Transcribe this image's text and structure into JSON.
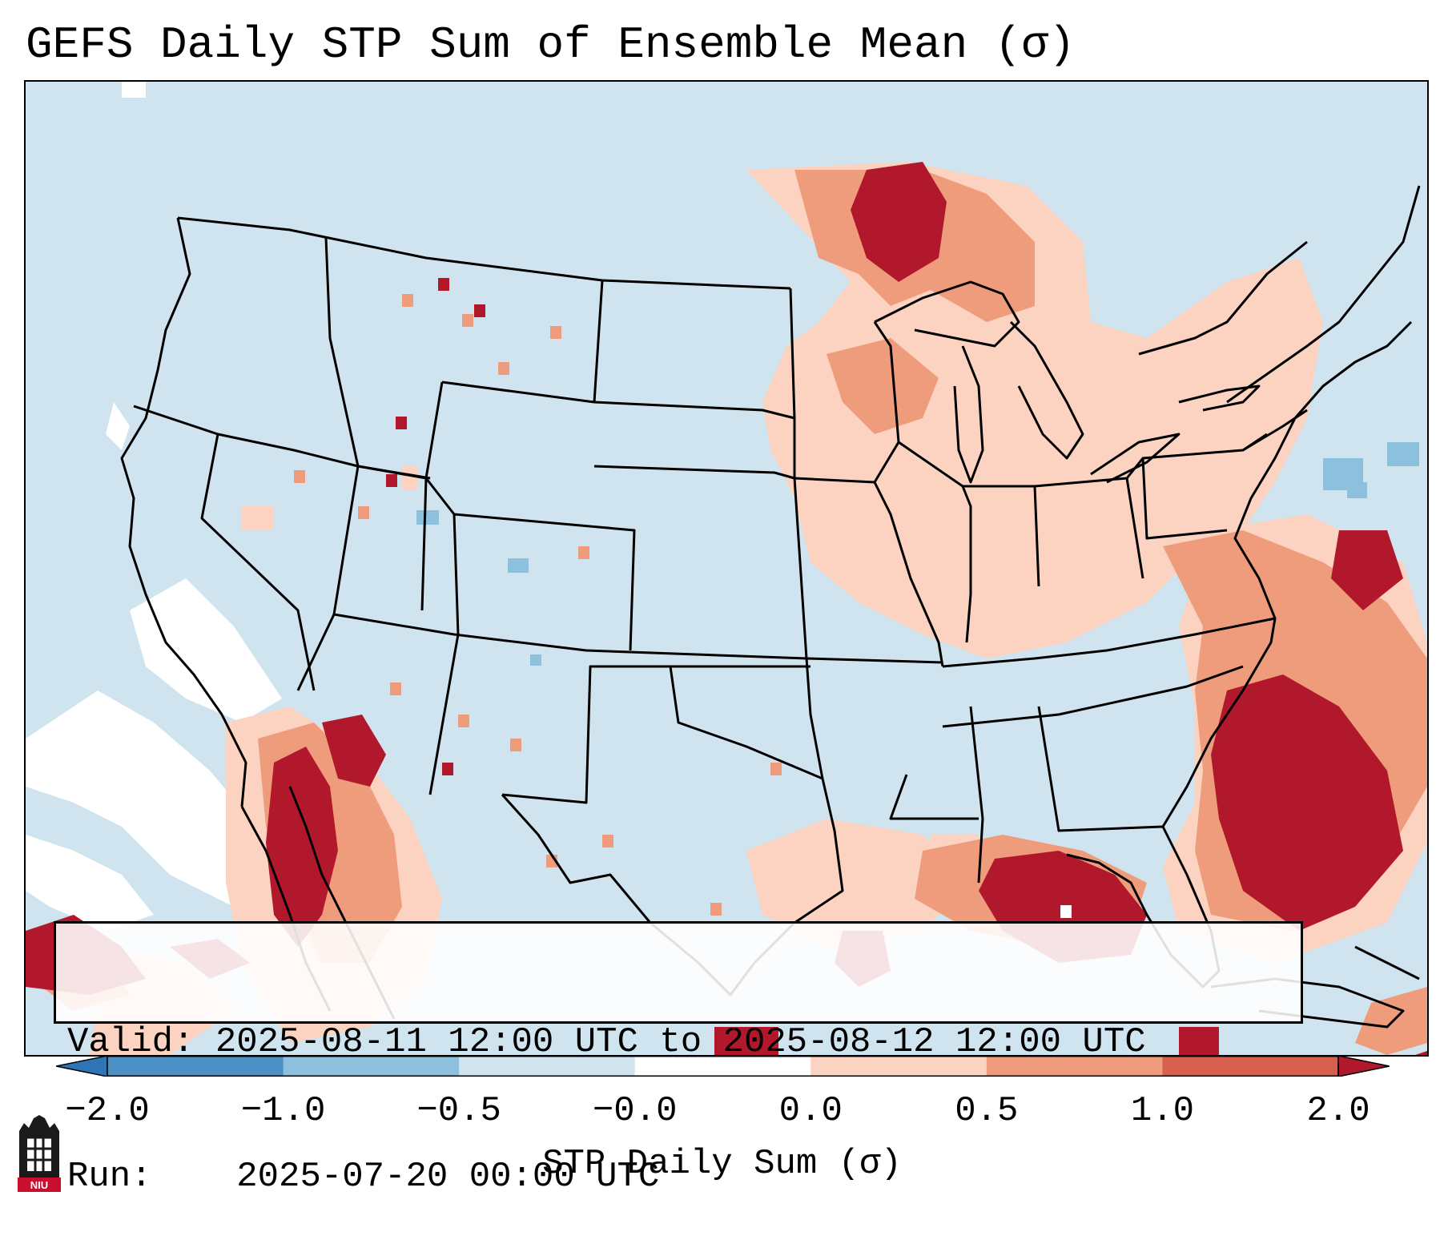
{
  "title": "GEFS Daily STP Sum of Ensemble Mean (σ)",
  "info": {
    "valid_label": "Valid:",
    "valid_value": "2025-08-11 12:00 UTC to 2025-08-12 12:00 UTC",
    "run_label": "Run:",
    "run_value": "2025-07-20 00:00 UTC"
  },
  "colorbar": {
    "label": "STP Daily Sum (σ)",
    "ticks": [
      "−2.0",
      "−1.0",
      "−0.5",
      "−0.0",
      "0.0",
      "0.5",
      "1.0",
      "2.0"
    ],
    "colors": [
      "#4a90c4",
      "#8cc0dd",
      "#d0e4ef",
      "#ffffff",
      "#fbd3c0",
      "#ef9c7c",
      "#d6604d",
      "#b2182b"
    ],
    "extend_low_color": "#2f74b5",
    "extend_high_color": "#b2182b"
  },
  "map": {
    "background_color": "#d0e4ef",
    "hot_color": "#b2182b",
    "warm_color": "#ef9c7c",
    "light_color": "#fbd3c0",
    "white_region_color": "#ffffff",
    "cold_color": "#8cc0dd",
    "border_color": "#000000"
  },
  "logo": {
    "text": "NIU",
    "name": "niu-logo"
  }
}
